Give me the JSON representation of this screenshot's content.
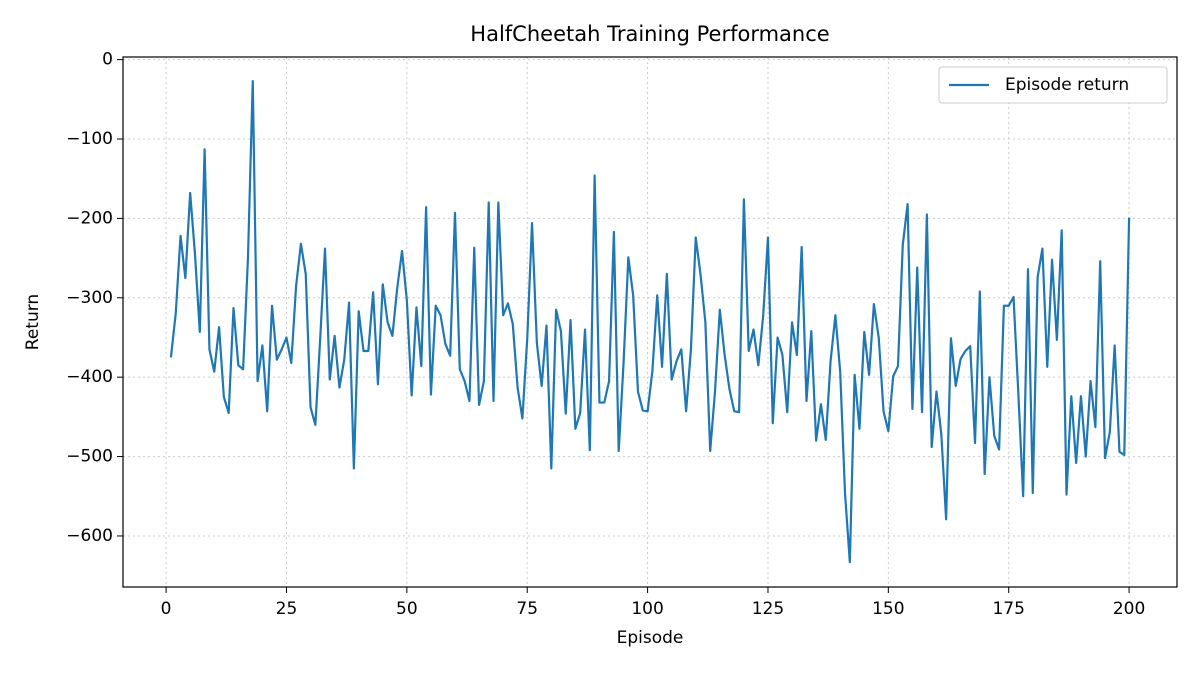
{
  "chart_data": {
    "type": "line",
    "title": "HalfCheetah Training Performance",
    "xlabel": "Episode",
    "ylabel": "Return",
    "x": [
      1,
      2,
      3,
      4,
      5,
      6,
      7,
      8,
      9,
      10,
      11,
      12,
      13,
      14,
      15,
      16,
      17,
      18,
      19,
      20,
      21,
      22,
      23,
      24,
      25,
      26,
      27,
      28,
      29,
      30,
      31,
      32,
      33,
      34,
      35,
      36,
      37,
      38,
      39,
      40,
      41,
      42,
      43,
      44,
      45,
      46,
      47,
      48,
      49,
      50,
      51,
      52,
      53,
      54,
      55,
      56,
      57,
      58,
      59,
      60,
      61,
      62,
      63,
      64,
      65,
      66,
      67,
      68,
      69,
      70,
      71,
      72,
      73,
      74,
      75,
      76,
      77,
      78,
      79,
      80,
      81,
      82,
      83,
      84,
      85,
      86,
      87,
      88,
      89,
      90,
      91,
      92,
      93,
      94,
      95,
      96,
      97,
      98,
      99,
      100,
      101,
      102,
      103,
      104,
      105,
      106,
      107,
      108,
      109,
      110,
      111,
      112,
      113,
      114,
      115,
      116,
      117,
      118,
      119,
      120,
      121,
      122,
      123,
      124,
      125,
      126,
      127,
      128,
      129,
      130,
      131,
      132,
      133,
      134,
      135,
      136,
      137,
      138,
      139,
      140,
      141,
      142,
      143,
      144,
      145,
      146,
      147,
      148,
      149,
      150,
      151,
      152,
      153,
      154,
      155,
      156,
      157,
      158,
      159,
      160,
      161,
      162,
      163,
      164,
      165,
      166,
      167,
      168,
      169,
      170,
      171,
      172,
      173,
      174,
      175,
      176,
      177,
      178,
      179,
      180,
      181,
      182,
      183,
      184,
      185,
      186,
      187,
      188,
      189,
      190,
      191,
      192,
      193,
      194,
      195,
      196,
      197,
      198,
      199,
      200
    ],
    "series": [
      {
        "name": "Episode return",
        "color": "#1f77b4",
        "values": [
          -375,
          -320,
          -222,
          -275,
          -168,
          -245,
          -343,
          -113,
          -365,
          -393,
          -337,
          -425,
          -445,
          -313,
          -385,
          -390,
          -250,
          -27,
          -405,
          -360,
          -443,
          -310,
          -378,
          -365,
          -350,
          -382,
          -285,
          -232,
          -270,
          -438,
          -460,
          -352,
          -238,
          -403,
          -348,
          -413,
          -378,
          -306,
          -515,
          -317,
          -367,
          -367,
          -293,
          -409,
          -283,
          -331,
          -348,
          -288,
          -241,
          -303,
          -423,
          -312,
          -386,
          -186,
          -422,
          -310,
          -322,
          -358,
          -373,
          -193,
          -390,
          -405,
          -430,
          -237,
          -435,
          -405,
          -180,
          -430,
          -180,
          -322,
          -307,
          -333,
          -413,
          -452,
          -352,
          -206,
          -357,
          -411,
          -335,
          -515,
          -315,
          -342,
          -446,
          -328,
          -465,
          -445,
          -340,
          -492,
          -146,
          -432,
          -432,
          -405,
          -217,
          -493,
          -383,
          -249,
          -297,
          -418,
          -442,
          -443,
          -392,
          -297,
          -387,
          -270,
          -403,
          -380,
          -365,
          -443,
          -365,
          -224,
          -271,
          -331,
          -493,
          -418,
          -315,
          -372,
          -415,
          -443,
          -444,
          -176,
          -367,
          -340,
          -385,
          -323,
          -224,
          -458,
          -350,
          -372,
          -444,
          -331,
          -372,
          -236,
          -430,
          -342,
          -480,
          -434,
          -479,
          -380,
          -322,
          -393,
          -546,
          -633,
          -397,
          -465,
          -343,
          -397,
          -308,
          -350,
          -443,
          -468,
          -399,
          -386,
          -233,
          -182,
          -440,
          -262,
          -444,
          -195,
          -488,
          -418,
          -472,
          -579,
          -351,
          -411,
          -377,
          -367,
          -361,
          -483,
          -292,
          -522,
          -400,
          -474,
          -491,
          -310,
          -310,
          -299,
          -421,
          -550,
          -264,
          -546,
          -274,
          -238,
          -387,
          -252,
          -353,
          -215,
          -548,
          -424,
          -508,
          -424,
          -500,
          -405,
          -463,
          -254,
          -502,
          -469,
          -360,
          -494,
          -498,
          -199
        ]
      }
    ],
    "xlim": [
      -8.95,
      209.95
    ],
    "ylim": [
      -664.3,
      3.3
    ],
    "xticks": [
      0,
      25,
      50,
      75,
      100,
      125,
      150,
      175,
      200
    ],
    "yticks": [
      0,
      {
        "value": -100,
        "label": "−100"
      },
      {
        "value": -200,
        "label": "−200"
      },
      {
        "value": -300,
        "label": "−300"
      },
      {
        "value": -400,
        "label": "−400"
      },
      {
        "value": -500,
        "label": "−500"
      },
      {
        "value": -600,
        "label": "−600"
      }
    ],
    "grid": true,
    "legend": "upper right"
  }
}
